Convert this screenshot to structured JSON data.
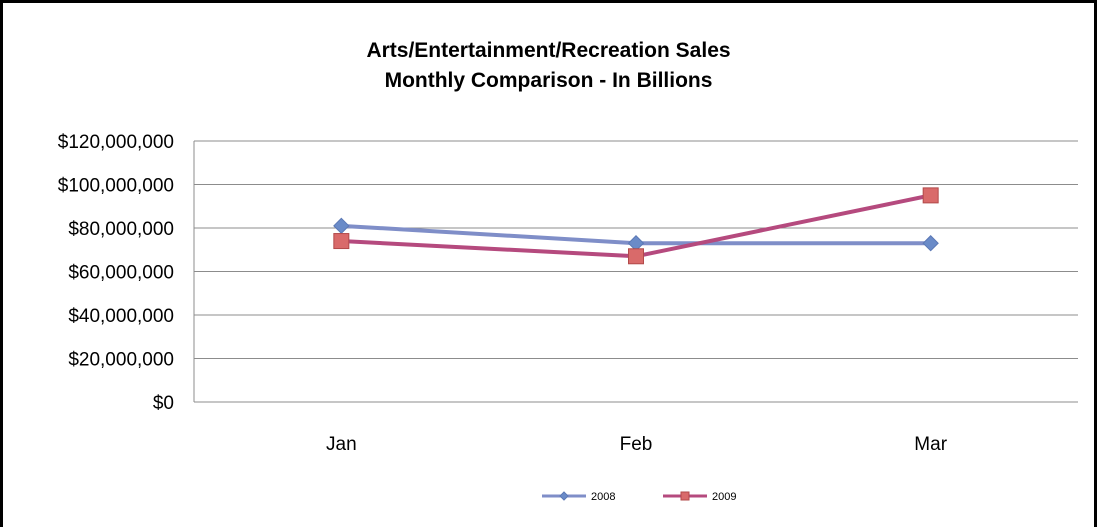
{
  "chart_data": {
    "type": "line",
    "title": "Arts/Entertainment/Recreation Sales",
    "subtitle": "Monthly Comparison - In Billions",
    "categories": [
      "Jan",
      "Feb",
      "Mar"
    ],
    "ylim": [
      0,
      120000000
    ],
    "yticks": [
      0,
      20000000,
      40000000,
      60000000,
      80000000,
      100000000,
      120000000
    ],
    "ytick_labels": [
      "$0",
      "$20,000,000",
      "$40,000,000",
      "$60,000,000",
      "$80,000,000",
      "$100,000,000",
      "$120,000,000"
    ],
    "grid": true,
    "legend_position": "bottom",
    "series": [
      {
        "name": "2008",
        "values": [
          81000000,
          73000000,
          73000000
        ],
        "color": "#7F8EC8",
        "marker_color": "#6A8BC8",
        "marker": "diamond"
      },
      {
        "name": "2009",
        "values": [
          74000000,
          67000000,
          95000000
        ],
        "color": "#B54A7E",
        "marker_color": "#D96A6A",
        "marker": "square"
      }
    ]
  }
}
